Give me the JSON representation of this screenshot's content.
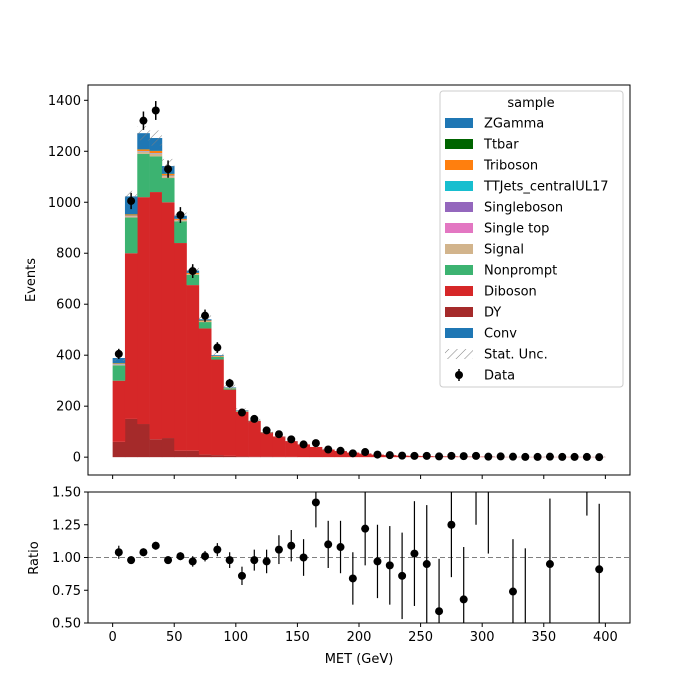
{
  "chart_data": [
    {
      "type": "bar",
      "stacked": true,
      "xlabel": "",
      "ylabel": "Events",
      "xlim": [
        -20,
        420
      ],
      "ylim": [
        -70,
        1460
      ],
      "yticks": [
        0,
        200,
        400,
        600,
        800,
        1000,
        1200,
        1400
      ],
      "bin_width": 10,
      "bin_edges_start": 0,
      "legend": {
        "title": "sample",
        "placement": "top-right",
        "entries": [
          {
            "label": "ZGamma",
            "color": "#1f77b4",
            "kind": "patch"
          },
          {
            "label": "Ttbar",
            "color": "#006400",
            "kind": "patch"
          },
          {
            "label": "Triboson",
            "color": "#ff7f0e",
            "kind": "patch"
          },
          {
            "label": "TTJets_centralUL17",
            "color": "#17becf",
            "kind": "patch"
          },
          {
            "label": "Singleboson",
            "color": "#9467bd",
            "kind": "patch"
          },
          {
            "label": "Single top",
            "color": "#e377c2",
            "kind": "patch"
          },
          {
            "label": "Signal",
            "color": "#d2b48c",
            "kind": "patch"
          },
          {
            "label": "Nonprompt",
            "color": "#3cb371",
            "kind": "patch"
          },
          {
            "label": "Diboson",
            "color": "#d62728",
            "kind": "patch"
          },
          {
            "label": "DY",
            "color": "#a52a2a",
            "kind": "patch"
          },
          {
            "label": "Conv",
            "color": "#1f77b4",
            "kind": "patch"
          },
          {
            "label": "Stat. Unc.",
            "color": "#808080",
            "kind": "hatch"
          },
          {
            "label": "Data",
            "color": "#000000",
            "kind": "errorbar"
          }
        ]
      },
      "stack_series": [
        {
          "name": "DY",
          "color": "#a52a2a",
          "values": [
            60,
            150,
            130,
            70,
            75,
            25,
            25,
            10,
            8,
            5,
            3,
            2,
            2,
            1,
            1,
            0,
            0,
            0,
            0,
            0,
            0,
            0,
            0,
            0,
            0,
            0,
            0,
            0,
            0,
            0,
            0,
            0,
            0,
            0,
            0,
            0,
            0,
            0,
            0,
            0
          ]
        },
        {
          "name": "Diboson",
          "color": "#d62728",
          "values": [
            240,
            650,
            890,
            970,
            925,
            815,
            650,
            495,
            375,
            260,
            175,
            140,
            95,
            80,
            62,
            50,
            40,
            30,
            24,
            18,
            14,
            10,
            8,
            6,
            5,
            4,
            3,
            3,
            2,
            2,
            2,
            1,
            1,
            1,
            1,
            1,
            1,
            1,
            1,
            1
          ]
        },
        {
          "name": "Nonprompt",
          "color": "#3cb371",
          "values": [
            60,
            140,
            170,
            140,
            95,
            85,
            40,
            25,
            10,
            5,
            2,
            1,
            1,
            0,
            0,
            0,
            0,
            0,
            0,
            0,
            0,
            0,
            0,
            0,
            0,
            0,
            0,
            0,
            0,
            0,
            0,
            0,
            0,
            0,
            0,
            0,
            0,
            0,
            0,
            0
          ]
        },
        {
          "name": "Signal",
          "color": "#d2b48c",
          "values": [
            3,
            5,
            8,
            10,
            7,
            5,
            4,
            3,
            2,
            1,
            1,
            0,
            0,
            0,
            0,
            0,
            0,
            0,
            0,
            0,
            0,
            0,
            0,
            0,
            0,
            0,
            0,
            0,
            0,
            0,
            0,
            0,
            0,
            0,
            0,
            0,
            0,
            0,
            0,
            0
          ]
        },
        {
          "name": "Single top",
          "color": "#e377c2",
          "values": [
            1,
            1,
            1,
            1,
            1,
            1,
            0,
            0,
            0,
            0,
            0,
            0,
            0,
            0,
            0,
            0,
            0,
            0,
            0,
            0,
            0,
            0,
            0,
            0,
            0,
            0,
            0,
            0,
            0,
            0,
            0,
            0,
            0,
            0,
            0,
            0,
            0,
            0,
            0,
            0
          ]
        },
        {
          "name": "Singleboson",
          "color": "#9467bd",
          "values": [
            1,
            1,
            1,
            1,
            1,
            0,
            0,
            0,
            0,
            0,
            0,
            0,
            0,
            0,
            0,
            0,
            0,
            0,
            0,
            0,
            0,
            0,
            0,
            0,
            0,
            0,
            0,
            0,
            0,
            0,
            0,
            0,
            0,
            0,
            0,
            0,
            0,
            0,
            0,
            0
          ]
        },
        {
          "name": "TTJets_centralUL17",
          "color": "#17becf",
          "values": [
            1,
            1,
            1,
            1,
            1,
            0,
            0,
            0,
            0,
            0,
            0,
            0,
            0,
            0,
            0,
            0,
            0,
            0,
            0,
            0,
            0,
            0,
            0,
            0,
            0,
            0,
            0,
            0,
            0,
            0,
            0,
            0,
            0,
            0,
            0,
            0,
            0,
            0,
            0,
            0
          ]
        },
        {
          "name": "Triboson",
          "color": "#ff7f0e",
          "values": [
            2,
            4,
            6,
            8,
            6,
            4,
            4,
            3,
            2,
            1,
            1,
            0,
            0,
            0,
            0,
            0,
            0,
            0,
            0,
            0,
            0,
            0,
            0,
            0,
            0,
            0,
            0,
            0,
            0,
            0,
            0,
            0,
            0,
            0,
            0,
            0,
            0,
            0,
            0,
            0
          ]
        },
        {
          "name": "Ttbar",
          "color": "#006400",
          "values": [
            1,
            1,
            1,
            1,
            1,
            0,
            0,
            0,
            0,
            0,
            0,
            0,
            0,
            0,
            0,
            0,
            0,
            0,
            0,
            0,
            0,
            0,
            0,
            0,
            0,
            0,
            0,
            0,
            0,
            0,
            0,
            0,
            0,
            0,
            0,
            0,
            0,
            0,
            0,
            0
          ]
        },
        {
          "name": "ZGamma",
          "color": "#1f77b4",
          "values": [
            20,
            70,
            63,
            50,
            30,
            12,
            9,
            5,
            3,
            2,
            2,
            0,
            0,
            0,
            0,
            0,
            0,
            0,
            0,
            0,
            0,
            0,
            0,
            0,
            0,
            0,
            0,
            0,
            0,
            0,
            0,
            0,
            0,
            0,
            0,
            0,
            0,
            0,
            0,
            0
          ]
        }
      ],
      "stat_unc": [
        12,
        22,
        28,
        30,
        28,
        22,
        18,
        15,
        12,
        10,
        8,
        7,
        6,
        5,
        5,
        4,
        4,
        3,
        3,
        3,
        2,
        2,
        2,
        2,
        2,
        2,
        2,
        1,
        1,
        1,
        1,
        1,
        1,
        1,
        1,
        1,
        1,
        1,
        1,
        1
      ],
      "data": {
        "name": "Data",
        "x": [
          5,
          15,
          25,
          35,
          45,
          55,
          65,
          75,
          85,
          95,
          105,
          115,
          125,
          135,
          145,
          155,
          165,
          175,
          185,
          195,
          205,
          215,
          225,
          235,
          245,
          255,
          265,
          275,
          285,
          295,
          305,
          315,
          325,
          335,
          345,
          355,
          365,
          375,
          385,
          395
        ],
        "y": [
          405,
          1005,
          1320,
          1360,
          1130,
          950,
          730,
          555,
          430,
          290,
          175,
          150,
          105,
          90,
          70,
          50,
          55,
          30,
          25,
          15,
          20,
          10,
          8,
          6,
          5,
          5,
          3,
          5,
          4,
          5,
          2,
          3,
          2,
          1,
          1,
          2,
          1,
          1,
          1,
          0
        ],
        "yerr": [
          20,
          32,
          36,
          37,
          34,
          31,
          27,
          24,
          21,
          17,
          13,
          12,
          10,
          9,
          8,
          7,
          7,
          5,
          5,
          4,
          4,
          3,
          3,
          2,
          2,
          2,
          2,
          2,
          2,
          2,
          1,
          2,
          1,
          1,
          1,
          1,
          1,
          1,
          1,
          1
        ]
      }
    },
    {
      "type": "scatter",
      "xlabel": "MET (GeV)",
      "ylabel": "Ratio",
      "xlim": [
        -20,
        420
      ],
      "ylim": [
        0.5,
        1.5
      ],
      "xticks": [
        0,
        50,
        100,
        150,
        200,
        250,
        300,
        350,
        400
      ],
      "yticks": [
        "0.50",
        "0.75",
        "1.00",
        "1.25",
        "1.50"
      ],
      "reference_line": 1.0,
      "points": {
        "x": [
          5,
          15,
          25,
          35,
          45,
          55,
          65,
          75,
          85,
          95,
          105,
          115,
          125,
          135,
          145,
          155,
          165,
          175,
          185,
          195,
          205,
          215,
          225,
          235,
          245,
          255,
          265,
          275,
          285,
          295,
          305,
          325,
          335,
          355,
          385,
          395
        ],
        "y": [
          1.04,
          0.98,
          1.04,
          1.09,
          0.98,
          1.01,
          0.97,
          1.01,
          1.06,
          0.98,
          0.86,
          0.98,
          0.97,
          1.06,
          1.09,
          1.0,
          1.42,
          1.1,
          1.08,
          0.84,
          1.22,
          0.97,
          0.94,
          0.86,
          1.03,
          0.95,
          0.59,
          1.25,
          0.68,
          null,
          null,
          0.74,
          null,
          0.95,
          null,
          0.91
        ],
        "yerr_low": [
          0.05,
          0.03,
          0.03,
          0.03,
          0.03,
          0.03,
          0.04,
          0.04,
          0.05,
          0.06,
          0.07,
          0.08,
          0.09,
          0.11,
          0.12,
          0.14,
          0.19,
          0.18,
          0.2,
          0.2,
          0.28,
          0.28,
          0.3,
          0.33,
          0.4,
          0.45,
          0.4,
          0.4,
          0.4,
          null,
          null,
          0.4,
          null,
          0.5,
          null,
          0.5
        ],
        "yerr_high": [
          0.05,
          0.03,
          0.03,
          0.03,
          0.03,
          0.03,
          0.04,
          0.04,
          0.05,
          0.06,
          0.07,
          0.08,
          0.09,
          0.11,
          0.12,
          0.14,
          0.19,
          0.18,
          0.2,
          0.2,
          0.28,
          0.28,
          0.3,
          0.33,
          0.4,
          0.45,
          0.4,
          0.4,
          0.4,
          null,
          null,
          0.4,
          null,
          0.5,
          null,
          0.5
        ]
      },
      "bars_only": [
        {
          "x": 295,
          "low": 1.25,
          "high": 1.55
        },
        {
          "x": 305,
          "low": 1.03,
          "high": 1.55
        },
        {
          "x": 335,
          "low": 0.45,
          "high": 1.07
        },
        {
          "x": 385,
          "low": 1.32,
          "high": 1.55
        }
      ]
    }
  ]
}
